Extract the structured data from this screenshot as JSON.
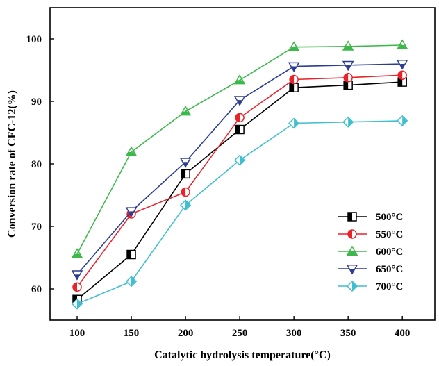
{
  "chart_data": {
    "type": "line",
    "xlabel": "Catalytic hydrolysis temperature(°C)",
    "ylabel": "Conversion rate of CFC-12(%)",
    "xlim": [
      75,
      430
    ],
    "ylim": [
      55,
      105
    ],
    "xticks": [
      100,
      150,
      200,
      250,
      300,
      350,
      400
    ],
    "yticks": [
      60,
      70,
      80,
      90,
      100
    ],
    "legend_position": "bottom-right",
    "x": [
      100,
      150,
      200,
      250,
      300,
      350,
      400
    ],
    "series": [
      {
        "name": "500°C",
        "color": "#000000",
        "marker": "square",
        "values": [
          58.3,
          65.5,
          78.4,
          85.5,
          92.2,
          92.6,
          93.1
        ]
      },
      {
        "name": "550°C",
        "color": "#e8232a",
        "marker": "circle",
        "values": [
          60.3,
          72.0,
          75.5,
          87.4,
          93.5,
          93.8,
          94.2
        ]
      },
      {
        "name": "600°C",
        "color": "#3db84a",
        "marker": "triangle-up",
        "values": [
          65.6,
          81.9,
          88.4,
          93.4,
          98.7,
          98.8,
          99.0
        ]
      },
      {
        "name": "650°C",
        "color": "#2b3c93",
        "marker": "triangle-down",
        "values": [
          62.3,
          72.4,
          80.3,
          90.2,
          95.6,
          95.8,
          96.0
        ]
      },
      {
        "name": "700°C",
        "color": "#3fbfcf",
        "marker": "diamond",
        "values": [
          57.6,
          61.2,
          73.4,
          80.6,
          86.5,
          86.7,
          86.9
        ]
      }
    ]
  }
}
